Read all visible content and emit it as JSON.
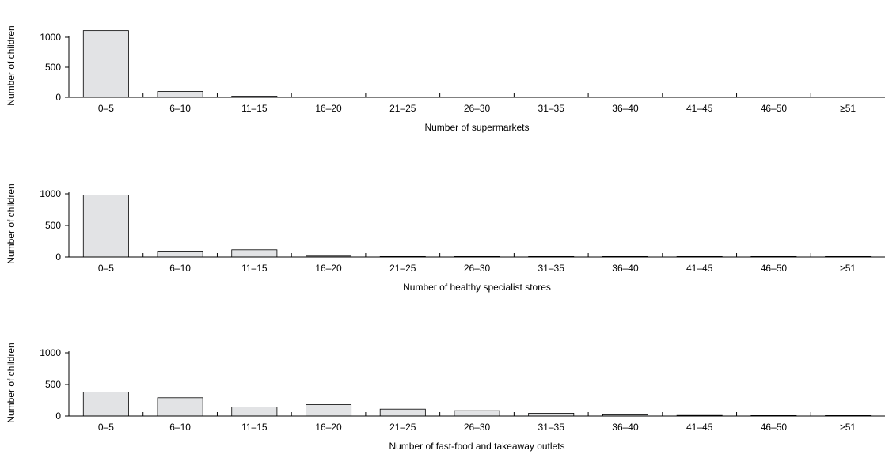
{
  "chart_data": [
    {
      "type": "bar",
      "categories": [
        "0–5",
        "6–10",
        "11–15",
        "16–20",
        "21–25",
        "26–30",
        "31–35",
        "36–40",
        "41–45",
        "46–50",
        "≥51"
      ],
      "values": [
        1110,
        100,
        20,
        5,
        3,
        2,
        2,
        1,
        1,
        1,
        1
      ],
      "xlabel": "Number of supermarkets",
      "ylabel": "Number of children",
      "ylim": [
        0,
        1000
      ],
      "yticks": [
        0,
        500,
        1000
      ]
    },
    {
      "type": "bar",
      "categories": [
        "0–5",
        "6–10",
        "11–15",
        "16–20",
        "21–25",
        "26–30",
        "31–35",
        "36–40",
        "41–45",
        "46–50",
        "≥51"
      ],
      "values": [
        980,
        95,
        115,
        15,
        4,
        3,
        2,
        1,
        1,
        1,
        1
      ],
      "xlabel": "Number of healthy specialist stores",
      "ylabel": "Number of children",
      "ylim": [
        0,
        1000
      ],
      "yticks": [
        0,
        500,
        1000
      ]
    },
    {
      "type": "bar",
      "categories": [
        "0–5",
        "6–10",
        "11–15",
        "16–20",
        "21–25",
        "26–30",
        "31–35",
        "36–40",
        "41–45",
        "46–50",
        "≥51"
      ],
      "values": [
        380,
        290,
        145,
        180,
        110,
        85,
        45,
        20,
        10,
        5,
        5
      ],
      "xlabel": "Number of fast-food and takeaway outlets",
      "ylabel": "Number of children",
      "ylim": [
        0,
        1000
      ],
      "yticks": [
        0,
        500,
        1000
      ]
    }
  ]
}
